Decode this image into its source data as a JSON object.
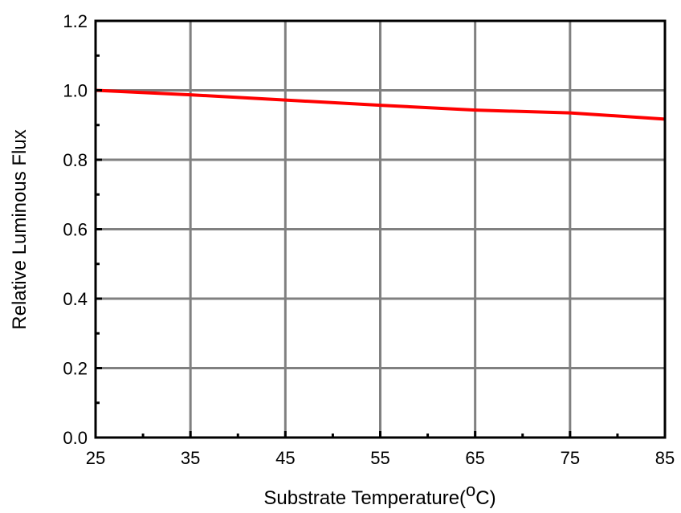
{
  "chart_data": {
    "type": "line",
    "title": "",
    "xlabel": "Substrate Temperature(",
    "xlabel_superscript": "o",
    "xlabel_suffix": "C)",
    "ylabel": "Relative Luminous Flux",
    "xlim": [
      25,
      85
    ],
    "ylim": [
      0.0,
      1.2
    ],
    "xticks": [
      25,
      35,
      45,
      55,
      65,
      75,
      85
    ],
    "xtick_labels": [
      "25",
      "35",
      "45",
      "55",
      "65",
      "75",
      "85"
    ],
    "yticks": [
      0.0,
      0.2,
      0.4,
      0.6,
      0.8,
      1.0,
      1.2
    ],
    "ytick_labels": [
      "0.0",
      "0.2",
      "0.4",
      "0.6",
      "0.8",
      "1.0",
      "1.2"
    ],
    "x_minor_ticks": [
      30,
      40,
      50,
      60,
      70,
      80
    ],
    "y_minor_ticks": [
      0.1,
      0.3,
      0.5,
      0.7,
      0.9,
      1.1
    ],
    "grid": true,
    "series": [
      {
        "color": "#ff0000",
        "x": [
          25,
          35,
          45,
          55,
          65,
          75,
          85
        ],
        "y": [
          1.0,
          0.987,
          0.972,
          0.957,
          0.943,
          0.935,
          0.917
        ]
      }
    ],
    "colors": {
      "grid": "#808080",
      "axis": "#000000",
      "line": "#ff0000"
    }
  }
}
